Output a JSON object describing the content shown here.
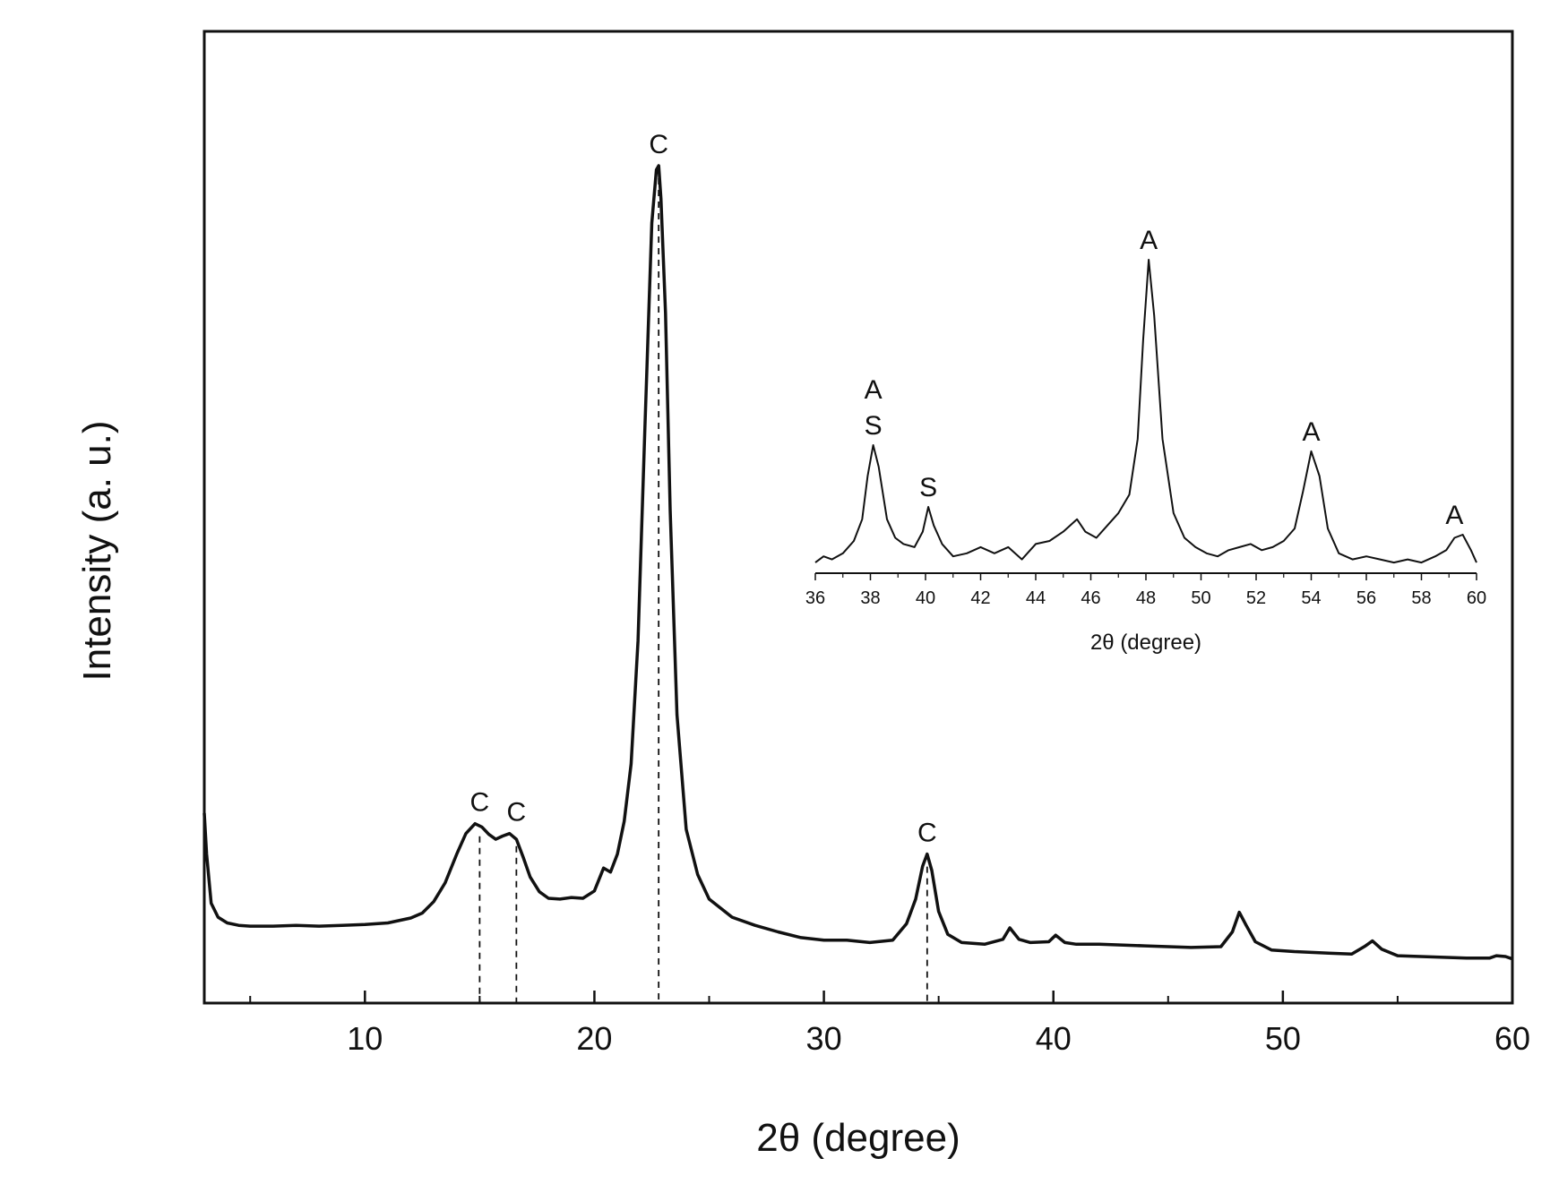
{
  "chart_data": [
    {
      "type": "line",
      "xlabel": "2θ (degree)",
      "ylabel": "Intensity (a. u.)",
      "xlim": [
        3,
        60
      ],
      "ylim": [
        0,
        100
      ],
      "major_ticks": [
        10,
        20,
        30,
        40,
        50,
        60
      ],
      "minor_ticks": [
        5,
        15,
        25,
        35,
        45,
        55
      ],
      "y_tick_labels": false,
      "grid": false,
      "series": [
        {
          "x": [
            3,
            3.1,
            3.3,
            3.6,
            4,
            4.5,
            5,
            6,
            7,
            8,
            9,
            10,
            11,
            12,
            12.5,
            13,
            13.5,
            14,
            14.4,
            14.8,
            15.1,
            15.4,
            15.7,
            16,
            16.3,
            16.6,
            16.9,
            17.2,
            17.6,
            18,
            18.5,
            19,
            19.5,
            20,
            20.4,
            20.7,
            21,
            21.3,
            21.6,
            21.9,
            22.2,
            22.5,
            22.7,
            22.8,
            22.9,
            23.1,
            23.3,
            23.6,
            24,
            24.5,
            25,
            26,
            27,
            28,
            29,
            30,
            31,
            32,
            33,
            33.6,
            34,
            34.3,
            34.5,
            34.7,
            35,
            35.4,
            36,
            37,
            37.8,
            38.1,
            38.5,
            39,
            39.8,
            40.1,
            40.5,
            41,
            42,
            44,
            46,
            47.3,
            47.8,
            48.1,
            48.4,
            48.8,
            49.5,
            50.5,
            52,
            53,
            53.6,
            53.9,
            54.3,
            55,
            56,
            57,
            58,
            59,
            59.3,
            59.7,
            60
          ],
          "y": [
            21,
            16,
            10,
            8.3,
            7.6,
            7.3,
            7.2,
            7.2,
            7.3,
            7.2,
            7.3,
            7.4,
            7.6,
            8.2,
            8.8,
            10.2,
            12.5,
            16,
            18.5,
            19.7,
            19.3,
            18.4,
            17.8,
            18.2,
            18.5,
            17.8,
            15.6,
            13.2,
            11.4,
            10.6,
            10.5,
            10.7,
            10.6,
            11.5,
            14.3,
            13.8,
            16,
            20,
            27,
            42,
            68,
            93,
            99.5,
            100,
            96,
            82,
            58,
            33,
            19,
            13.5,
            10.5,
            8.3,
            7.3,
            6.5,
            5.8,
            5.5,
            5.5,
            5.2,
            5.5,
            7.5,
            10.5,
            14.5,
            16,
            14,
            9,
            6.2,
            5.2,
            5,
            5.6,
            7,
            5.6,
            5.2,
            5.3,
            6.1,
            5.2,
            5,
            5,
            4.8,
            4.6,
            4.7,
            6.5,
            8.9,
            7.3,
            5.3,
            4.3,
            4.1,
            3.9,
            3.8,
            4.8,
            5.4,
            4.4,
            3.6,
            3.5,
            3.4,
            3.3,
            3.3,
            3.6,
            3.5,
            3.2
          ]
        }
      ],
      "annotations": [
        {
          "text": "C",
          "x": 15,
          "y": 19.7
        },
        {
          "text": "C",
          "x": 16.6,
          "y": 18.5
        },
        {
          "text": "C",
          "x": 22.8,
          "y": 100
        },
        {
          "text": "C",
          "x": 34.5,
          "y": 16
        }
      ],
      "reference_lines": [
        15,
        16.6,
        22.8,
        34.5
      ]
    },
    {
      "type": "line",
      "xlabel": "2θ (degree)",
      "xlim": [
        36,
        60
      ],
      "ylim": [
        0,
        100
      ],
      "major_ticks": [
        36,
        38,
        40,
        42,
        44,
        46,
        48,
        50,
        52,
        54,
        56,
        58,
        60
      ],
      "grid": false,
      "series": [
        {
          "x": [
            36,
            36.3,
            36.6,
            37,
            37.4,
            37.7,
            37.9,
            38.1,
            38.3,
            38.6,
            38.9,
            39.2,
            39.6,
            39.9,
            40.1,
            40.3,
            40.6,
            41,
            41.5,
            42,
            42.5,
            43,
            43.5,
            44,
            44.5,
            45,
            45.5,
            45.8,
            46.2,
            46.6,
            47,
            47.4,
            47.7,
            47.9,
            48.1,
            48.3,
            48.6,
            49,
            49.4,
            49.8,
            50.2,
            50.6,
            51,
            51.4,
            51.8,
            52.2,
            52.6,
            53,
            53.4,
            53.7,
            54,
            54.3,
            54.6,
            55,
            55.5,
            56,
            56.5,
            57,
            57.5,
            58,
            58.5,
            58.9,
            59.2,
            59.5,
            59.8,
            60
          ],
          "y": [
            2,
            4,
            3,
            5,
            9,
            16,
            30,
            40,
            33,
            16,
            10,
            8,
            7,
            12,
            20,
            14,
            8,
            4,
            5,
            7,
            5,
            7,
            3,
            8,
            9,
            12,
            16,
            12,
            10,
            14,
            18,
            24,
            42,
            74,
            100,
            82,
            42,
            18,
            10,
            7,
            5,
            4,
            6,
            7,
            8,
            6,
            7,
            9,
            13,
            25,
            38,
            30,
            13,
            5,
            3,
            4,
            3,
            2,
            3,
            2,
            4,
            6,
            10,
            11,
            6,
            2
          ]
        }
      ],
      "annotations": [
        {
          "text": "A",
          "x": 38.1,
          "y": 40,
          "stack": [
            "A",
            "S"
          ]
        },
        {
          "text": "S",
          "x": 40.1,
          "y": 20
        },
        {
          "text": "A",
          "x": 48.1,
          "y": 100
        },
        {
          "text": "A",
          "x": 54,
          "y": 38
        },
        {
          "text": "A",
          "x": 59.2,
          "y": 11
        }
      ]
    }
  ]
}
